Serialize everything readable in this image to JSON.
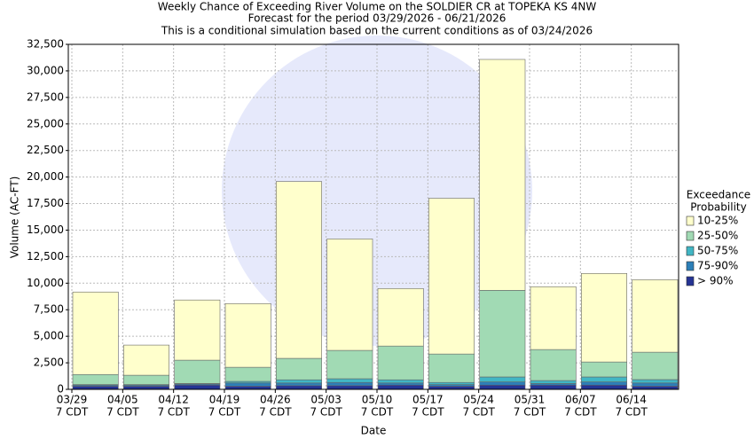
{
  "chart_data": {
    "type": "stacked-bar",
    "title": "Weekly Chance of Exceeding River Volume on the SOLDIER CR at TOPEKA KS 4NW",
    "subtitle": "Forecast for the period 03/29/2026 - 06/21/2026",
    "note": "This is a conditional simulation based on the current conditions as of 03/24/2026",
    "x_label": "Date",
    "y_label": "Volume (AC-FT)",
    "categories": [
      "03/29",
      "04/05",
      "04/12",
      "04/19",
      "04/26",
      "05/03",
      "05/10",
      "05/17",
      "05/24",
      "05/31",
      "06/07",
      "06/14"
    ],
    "category_time": [
      "7 CDT",
      "7 CDT",
      "7 CDT",
      "7 CDT",
      "7 CDT",
      "7 CDT",
      "7 CDT",
      "7 CDT",
      "7 CDT",
      "7 CDT",
      "7 CDT",
      "7 CDT"
    ],
    "legend_title": [
      "Exceedance",
      "Probability"
    ],
    "series": [
      {
        "name": "> 90%",
        "color": "#253494",
        "values": [
          300,
          300,
          400,
          300,
          350,
          350,
          400,
          300,
          400,
          400,
          400,
          300
        ]
      },
      {
        "name": "75-90%",
        "color": "#2c7fb8",
        "values": [
          100,
          100,
          100,
          300,
          250,
          300,
          200,
          150,
          300,
          150,
          300,
          300
        ]
      },
      {
        "name": "50-75%",
        "color": "#41b6c4",
        "values": [
          50,
          50,
          50,
          150,
          300,
          350,
          300,
          200,
          470,
          280,
          470,
          320
        ]
      },
      {
        "name": "25-50%",
        "color": "#a1dab4",
        "values": [
          950,
          880,
          2200,
          1330,
          2020,
          2670,
          3180,
          2680,
          8160,
          2920,
          1410,
          2580
        ]
      },
      {
        "name": "10-25%",
        "color": "#ffffcc",
        "values": [
          7770,
          2840,
          5670,
          6000,
          16660,
          10500,
          5420,
          14670,
          21750,
          5920,
          8340,
          6830
        ]
      }
    ],
    "ylim": [
      0,
      32500
    ],
    "yticks": [
      0,
      {
        "value": 2500,
        "label": "2,500"
      },
      {
        "value": 5000,
        "label": "5,000"
      },
      {
        "value": 7500,
        "label": "7,500"
      },
      {
        "value": 10000,
        "label": "10,000"
      },
      {
        "value": 12500,
        "label": "12,500"
      },
      {
        "value": 15000,
        "label": "15,000"
      },
      {
        "value": 17500,
        "label": "17,500"
      },
      {
        "value": 20000,
        "label": "20,000"
      },
      {
        "value": 22500,
        "label": "22,500"
      },
      {
        "value": 25000,
        "label": "25,000"
      },
      {
        "value": 27500,
        "label": "27,500"
      },
      {
        "value": 30000,
        "label": "30,000"
      },
      {
        "value": 32500,
        "label": "32,500"
      }
    ],
    "grid": true
  }
}
